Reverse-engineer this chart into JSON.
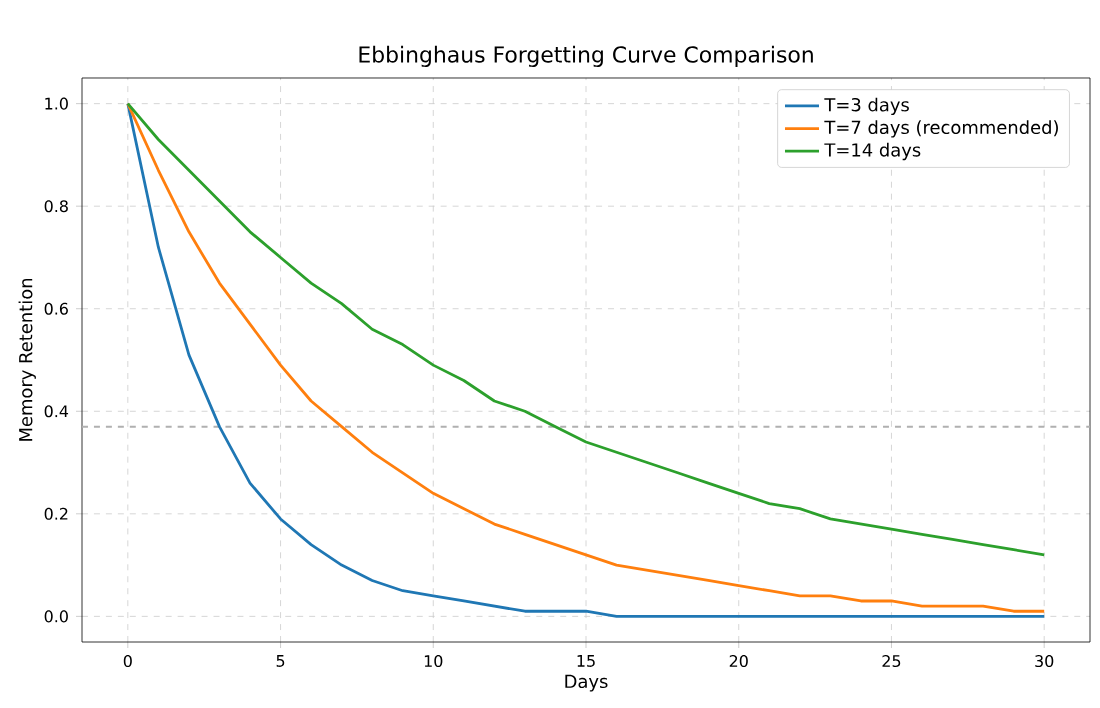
{
  "chart_data": {
    "type": "line",
    "title": "Ebbinghaus Forgetting Curve Comparison",
    "xlabel": "Days",
    "ylabel": "Memory Retention",
    "x": [
      0,
      1,
      2,
      3,
      4,
      5,
      6,
      7,
      8,
      9,
      10,
      11,
      12,
      13,
      14,
      15,
      16,
      17,
      18,
      19,
      20,
      21,
      22,
      23,
      24,
      25,
      26,
      27,
      28,
      29,
      30
    ],
    "series": [
      {
        "name": "T=3 days",
        "color": "#1f77b4",
        "values": [
          1,
          0.72,
          0.51,
          0.37,
          0.26,
          0.19,
          0.14,
          0.1,
          0.07,
          0.05,
          0.04,
          0.03,
          0.02,
          0.01,
          0.01,
          0.01,
          0,
          0,
          0,
          0,
          0,
          0,
          0,
          0,
          0,
          0,
          0,
          0,
          0,
          0,
          0
        ]
      },
      {
        "name": "T=7 days (recommended)",
        "color": "#ff7f0e",
        "values": [
          1,
          0.87,
          0.75,
          0.65,
          0.57,
          0.49,
          0.42,
          0.37,
          0.32,
          0.28,
          0.24,
          0.21,
          0.18,
          0.16,
          0.14,
          0.12,
          0.1,
          0.09,
          0.08,
          0.07,
          0.06,
          0.05,
          0.04,
          0.04,
          0.03,
          0.03,
          0.02,
          0.02,
          0.02,
          0.01,
          0.01
        ]
      },
      {
        "name": "T=14 days",
        "color": "#2ca02c",
        "values": [
          1,
          0.93,
          0.87,
          0.81,
          0.75,
          0.7,
          0.65,
          0.61,
          0.56,
          0.53,
          0.49,
          0.46,
          0.42,
          0.4,
          0.37,
          0.34,
          0.32,
          0.3,
          0.28,
          0.26,
          0.24,
          0.22,
          0.21,
          0.19,
          0.18,
          0.17,
          0.16,
          0.15,
          0.14,
          0.13,
          0.12
        ]
      }
    ],
    "xlim": [
      -1.5,
      31.5
    ],
    "ylim": [
      -0.05,
      1.05
    ],
    "xticks": [
      0,
      5,
      10,
      15,
      20,
      25,
      30
    ],
    "yticks": [
      {
        "value": 0,
        "label": "0.0"
      },
      {
        "value": 0.2,
        "label": "0.2"
      },
      {
        "value": 0.4,
        "label": "0.4"
      },
      {
        "value": 0.6,
        "label": "0.6"
      },
      {
        "value": 0.8,
        "label": "0.8"
      },
      {
        "value": 1,
        "label": "1.0"
      }
    ],
    "ref_lines": [
      {
        "axis": "y",
        "value": 0.37,
        "color": "#b0b0b0",
        "line_style": "dashed"
      }
    ],
    "grid": true,
    "legend": "top right",
    "line_style": "solid"
  }
}
